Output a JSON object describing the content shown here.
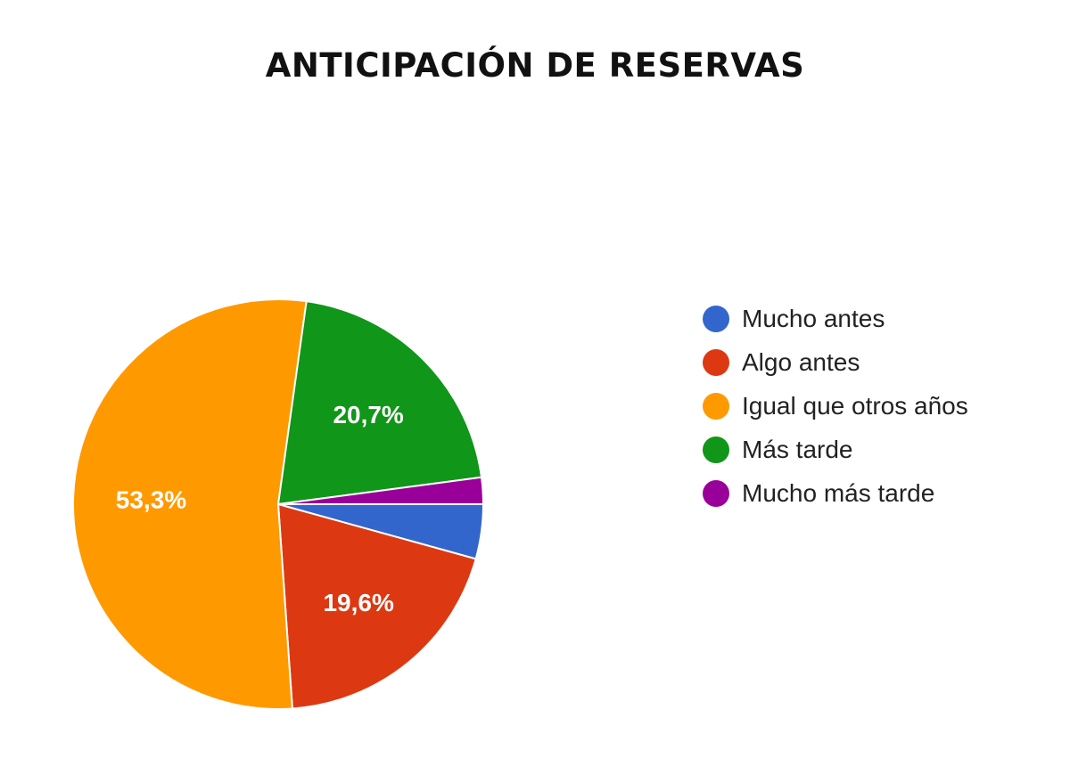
{
  "chart_data": {
    "type": "pie",
    "title": "ANTICIPACIÓN DE RESERVAS",
    "categories": [
      "Mucho antes",
      "Algo antes",
      "Igual que otros años",
      "Más tarde",
      "Mucho más tarde"
    ],
    "values": [
      4.3,
      19.6,
      53.3,
      20.7,
      2.1
    ],
    "data_labels": [
      "",
      "19,6%",
      "53,3%",
      "20,7%",
      ""
    ],
    "colors": [
      "#3366cc",
      "#dc3912",
      "#ff9900",
      "#109618",
      "#990099"
    ],
    "legend_position": "right"
  }
}
